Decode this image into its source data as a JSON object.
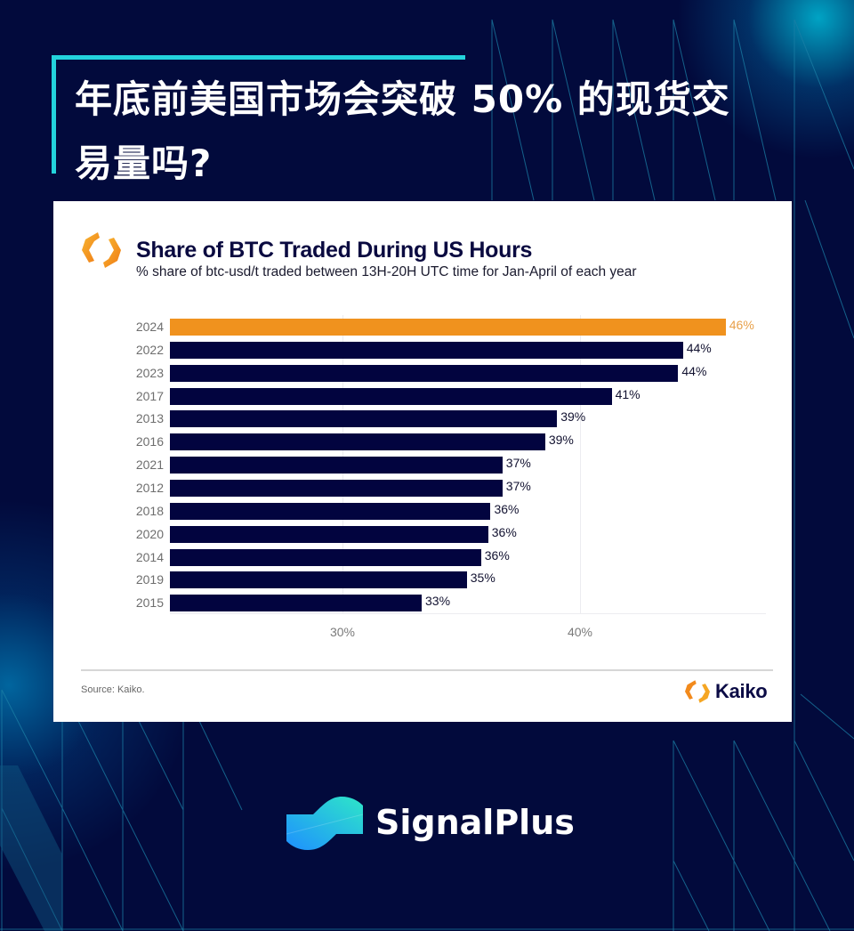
{
  "headline": {
    "line1": "年底前美国市场会突破 50% 的现货交",
    "line2": "易量吗?"
  },
  "card": {
    "title": "Share of BTC Traded During US Hours",
    "subtitle": "% share of btc-usd/t traded between 13H-20H UTC time for Jan-April of each year",
    "source": "Source: Kaiko.",
    "footer_logo_text": "Kaiko",
    "logo_icon": "kaiko-hexagon-icon"
  },
  "brand": {
    "name": "SignalPlus",
    "icon": "signalplus-wave-icon"
  },
  "colors": {
    "background": "#020a3c",
    "accent_bar": "#f0921e",
    "default_bar": "#02043f",
    "title_bracket": "#23d3dc"
  },
  "chart_data": {
    "type": "bar",
    "orientation": "horizontal",
    "title": "Share of BTC Traded During US Hours",
    "subtitle": "% share of btc-usd/t traded between 13H-20H UTC time for Jan-April of each year",
    "xlabel": "",
    "ylabel": "",
    "categories": [
      "2024",
      "2022",
      "2023",
      "2017",
      "2013",
      "2016",
      "2021",
      "2012",
      "2018",
      "2020",
      "2014",
      "2019",
      "2015"
    ],
    "values": [
      46,
      44,
      44,
      41,
      39,
      39,
      37,
      37,
      36,
      36,
      36,
      35,
      33
    ],
    "precise_values": [
      46.2,
      44.4,
      44.2,
      41.4,
      39.1,
      38.6,
      36.8,
      36.8,
      36.3,
      36.2,
      35.9,
      35.3,
      33.4
    ],
    "labels": [
      "46%",
      "44%",
      "44%",
      "41%",
      "39%",
      "39%",
      "37%",
      "37%",
      "36%",
      "36%",
      "36%",
      "35%",
      "33%"
    ],
    "highlight": "2024",
    "xticks": [
      "30%",
      "40%"
    ],
    "xtick_values": [
      30,
      40
    ],
    "xlim": [
      22.8,
      48
    ],
    "grid": true,
    "legend": null,
    "source": "Source: Kaiko."
  }
}
